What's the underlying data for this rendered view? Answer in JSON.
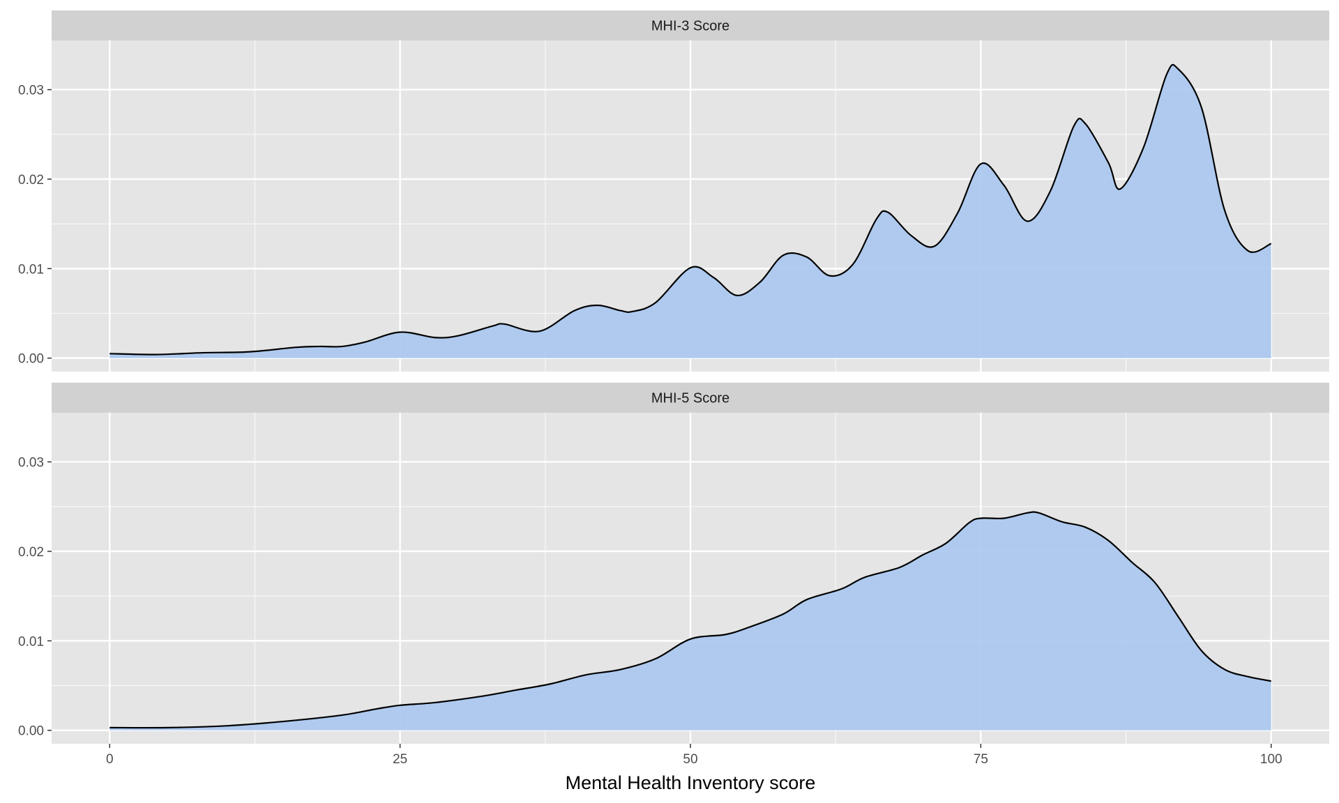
{
  "colors": {
    "panel_background": "#e5e5e5",
    "strip_background": "#d1d1d1",
    "grid_major": "#ffffff",
    "fill": "#a9c6ee",
    "line": "#000000",
    "tick_text": "#4d4d4d"
  },
  "chart_data": {
    "type": "area",
    "layout": "facet-vertical",
    "xlabel": "Mental Health Inventory score",
    "ylabel": "",
    "xlim": [
      -5,
      105
    ],
    "ylim": [
      -0.0015,
      0.0355
    ],
    "x_ticks": [
      0,
      25,
      50,
      75,
      100
    ],
    "x_tick_labels": [
      "0",
      "25",
      "50",
      "75",
      "100"
    ],
    "x_minor_ticks": [
      12.5,
      37.5,
      62.5,
      87.5
    ],
    "y_ticks": [
      0,
      0.01,
      0.02,
      0.03
    ],
    "y_tick_labels": [
      "0.00",
      "0.01",
      "0.02",
      "0.03"
    ],
    "y_minor_ticks": [
      0.005,
      0.015,
      0.025
    ],
    "grid": true,
    "legend": "none",
    "panels": [
      {
        "strip": "MHI-3 Score",
        "x": [
          0,
          4,
          8,
          12,
          16,
          18,
          20,
          22,
          25,
          28,
          30,
          33,
          34,
          37,
          40,
          42,
          44,
          45,
          47,
          50,
          52,
          54,
          56,
          58,
          60,
          62,
          64,
          66,
          67,
          69,
          71,
          73,
          75,
          77,
          79,
          81,
          83,
          84,
          86,
          87,
          89,
          91,
          92,
          94,
          96,
          98,
          100
        ],
        "y": [
          0.0005,
          0.0004,
          0.0006,
          0.0007,
          0.0012,
          0.0013,
          0.0013,
          0.0018,
          0.0029,
          0.0023,
          0.0025,
          0.0036,
          0.0038,
          0.003,
          0.0053,
          0.0059,
          0.0053,
          0.0052,
          0.0062,
          0.0101,
          0.009,
          0.007,
          0.0085,
          0.0115,
          0.0113,
          0.0092,
          0.0105,
          0.0155,
          0.0163,
          0.0137,
          0.0125,
          0.0162,
          0.0217,
          0.0193,
          0.0153,
          0.0187,
          0.0259,
          0.0262,
          0.0218,
          0.0189,
          0.0235,
          0.0317,
          0.0323,
          0.028,
          0.0165,
          0.012,
          0.0128
        ]
      },
      {
        "strip": "MHI-5 Score",
        "x": [
          0,
          5,
          10,
          15,
          20,
          23,
          25,
          28,
          32,
          35,
          38,
          41,
          44,
          47,
          50,
          53,
          55,
          58,
          60,
          63,
          65,
          68,
          70,
          72,
          74,
          75,
          77,
          79,
          80,
          82,
          84,
          86,
          88,
          90,
          92,
          94,
          96,
          98,
          100
        ],
        "y": [
          0.0003,
          0.0003,
          0.0005,
          0.001,
          0.0017,
          0.0024,
          0.0028,
          0.0031,
          0.0038,
          0.0045,
          0.0052,
          0.0062,
          0.0068,
          0.008,
          0.0102,
          0.0107,
          0.0115,
          0.013,
          0.0146,
          0.0158,
          0.0171,
          0.0182,
          0.0196,
          0.0209,
          0.0232,
          0.0237,
          0.0237,
          0.0243,
          0.0243,
          0.0233,
          0.0227,
          0.0212,
          0.0188,
          0.0165,
          0.0127,
          0.0089,
          0.0068,
          0.006,
          0.0055
        ]
      }
    ]
  }
}
